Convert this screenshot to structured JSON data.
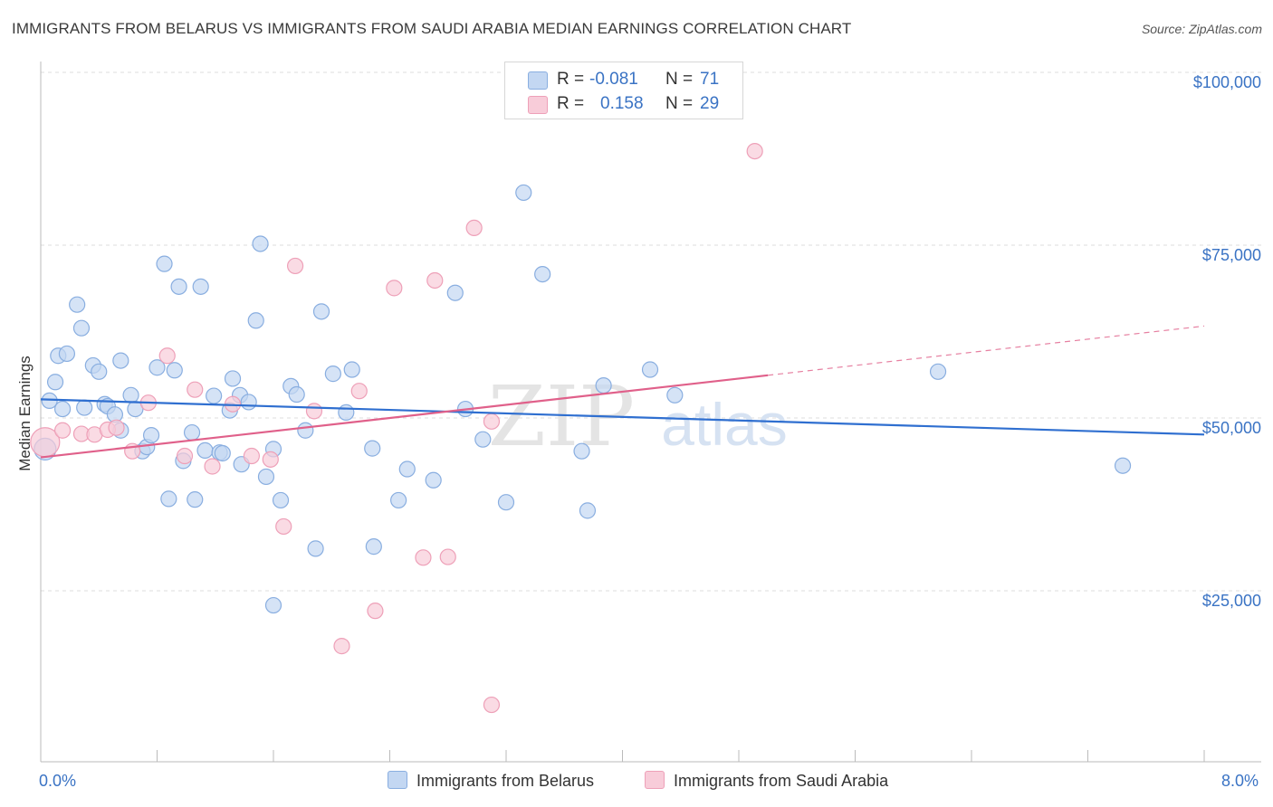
{
  "title": "IMMIGRANTS FROM BELARUS VS IMMIGRANTS FROM SAUDI ARABIA MEDIAN EARNINGS CORRELATION CHART",
  "source": "Source: ZipAtlas.com",
  "watermark": {
    "zip": "ZIP",
    "atlas": "atlas"
  },
  "legend": {
    "rows": [
      {
        "r_label": "R =",
        "r_value": "-0.081",
        "n_label": "N =",
        "n_value": "71"
      },
      {
        "r_label": "R =",
        "r_value": "0.158",
        "n_label": "N =",
        "n_value": "29"
      }
    ]
  },
  "bottom_legend": [
    "Immigrants from Belarus",
    "Immigrants from Saudi Arabia"
  ],
  "colors": {
    "blue_fill": "#c3d7f2",
    "blue_stroke": "#89aee0",
    "blue_line": "#2f6fd0",
    "pink_fill": "#f8ccd9",
    "pink_stroke": "#eea0b8",
    "pink_line": "#e0608a",
    "axis_text": "#3a73c4",
    "grid": "#dddddd"
  },
  "chart_data": {
    "type": "scatter",
    "title": "IMMIGRANTS FROM BELARUS VS IMMIGRANTS FROM SAUDI ARABIA MEDIAN EARNINGS CORRELATION CHART",
    "xlabel": "",
    "ylabel": "Median Earnings",
    "xlim": [
      0,
      8.0
    ],
    "ylim": [
      0,
      105000
    ],
    "x_tick_labels": [
      "0.0%",
      "8.0%"
    ],
    "y_ticks": [
      25000,
      50000,
      75000,
      100000
    ],
    "y_tick_labels": [
      "$25,000",
      "$50,000",
      "$75,000",
      "$100,000"
    ],
    "grid": true,
    "series": [
      {
        "name": "Immigrants from Belarus",
        "color": "#89aee0",
        "r": -0.081,
        "n": 71,
        "trend": {
          "x": [
            0.0,
            8.0
          ],
          "y": [
            52700,
            47600
          ],
          "solid_until": 8.0
        },
        "points": [
          [
            0.03,
            45500
          ],
          [
            0.06,
            52500
          ],
          [
            0.1,
            55200
          ],
          [
            0.12,
            59000
          ],
          [
            0.15,
            51300
          ],
          [
            0.25,
            66400
          ],
          [
            0.28,
            63000
          ],
          [
            0.18,
            59300
          ],
          [
            0.3,
            51500
          ],
          [
            0.36,
            57600
          ],
          [
            0.4,
            56700
          ],
          [
            0.44,
            52000
          ],
          [
            0.46,
            51700
          ],
          [
            0.51,
            50500
          ],
          [
            0.55,
            48200
          ],
          [
            0.55,
            58300
          ],
          [
            0.62,
            53300
          ],
          [
            0.65,
            51300
          ],
          [
            0.7,
            45200
          ],
          [
            0.73,
            45800
          ],
          [
            0.76,
            47500
          ],
          [
            0.8,
            57300
          ],
          [
            0.85,
            72300
          ],
          [
            0.88,
            38300
          ],
          [
            0.92,
            56900
          ],
          [
            0.95,
            69000
          ],
          [
            0.98,
            43800
          ],
          [
            1.04,
            47900
          ],
          [
            1.06,
            38200
          ],
          [
            1.1,
            69000
          ],
          [
            1.13,
            45300
          ],
          [
            1.19,
            53200
          ],
          [
            1.23,
            45000
          ],
          [
            1.25,
            44900
          ],
          [
            1.3,
            51100
          ],
          [
            1.32,
            55700
          ],
          [
            1.37,
            53300
          ],
          [
            1.38,
            43300
          ],
          [
            1.43,
            52300
          ],
          [
            1.48,
            64100
          ],
          [
            1.51,
            75200
          ],
          [
            1.55,
            41500
          ],
          [
            1.6,
            45500
          ],
          [
            1.65,
            38100
          ],
          [
            1.72,
            54600
          ],
          [
            1.76,
            53400
          ],
          [
            1.82,
            48200
          ],
          [
            1.89,
            31100
          ],
          [
            1.93,
            65400
          ],
          [
            2.01,
            56400
          ],
          [
            2.1,
            50800
          ],
          [
            2.14,
            57000
          ],
          [
            2.29,
            31400
          ],
          [
            2.28,
            45600
          ],
          [
            2.46,
            38100
          ],
          [
            2.52,
            42600
          ],
          [
            2.7,
            41000
          ],
          [
            2.85,
            68100
          ],
          [
            2.92,
            51300
          ],
          [
            3.04,
            46900
          ],
          [
            3.2,
            37800
          ],
          [
            3.32,
            82600
          ],
          [
            3.45,
            70800
          ],
          [
            3.72,
            45200
          ],
          [
            3.76,
            36600
          ],
          [
            3.87,
            54700
          ],
          [
            4.19,
            57000
          ],
          [
            4.36,
            53300
          ],
          [
            6.17,
            56700
          ],
          [
            7.44,
            43100
          ],
          [
            1.6,
            22900
          ]
        ]
      },
      {
        "name": "Immigrants from Saudi Arabia",
        "color": "#eea0b8",
        "r": 0.158,
        "n": 29,
        "trend": {
          "x": [
            0.0,
            8.0
          ],
          "y": [
            44300,
            63300
          ],
          "solid_until": 5.0
        },
        "points": [
          [
            0.03,
            46500
          ],
          [
            0.15,
            48200
          ],
          [
            0.28,
            47700
          ],
          [
            0.37,
            47600
          ],
          [
            0.46,
            48300
          ],
          [
            0.52,
            48600
          ],
          [
            0.63,
            45200
          ],
          [
            0.74,
            52200
          ],
          [
            0.87,
            59000
          ],
          [
            0.99,
            44500
          ],
          [
            1.06,
            54100
          ],
          [
            1.18,
            43000
          ],
          [
            1.32,
            52000
          ],
          [
            1.45,
            44500
          ],
          [
            1.58,
            44000
          ],
          [
            1.67,
            34300
          ],
          [
            1.75,
            72000
          ],
          [
            1.88,
            51000
          ],
          [
            2.07,
            17000
          ],
          [
            2.19,
            53900
          ],
          [
            2.3,
            22100
          ],
          [
            2.43,
            68800
          ],
          [
            2.63,
            29800
          ],
          [
            2.71,
            69900
          ],
          [
            2.8,
            29900
          ],
          [
            2.98,
            77500
          ],
          [
            3.1,
            49500
          ],
          [
            3.1,
            8500
          ],
          [
            4.91,
            88600
          ]
        ]
      }
    ]
  }
}
